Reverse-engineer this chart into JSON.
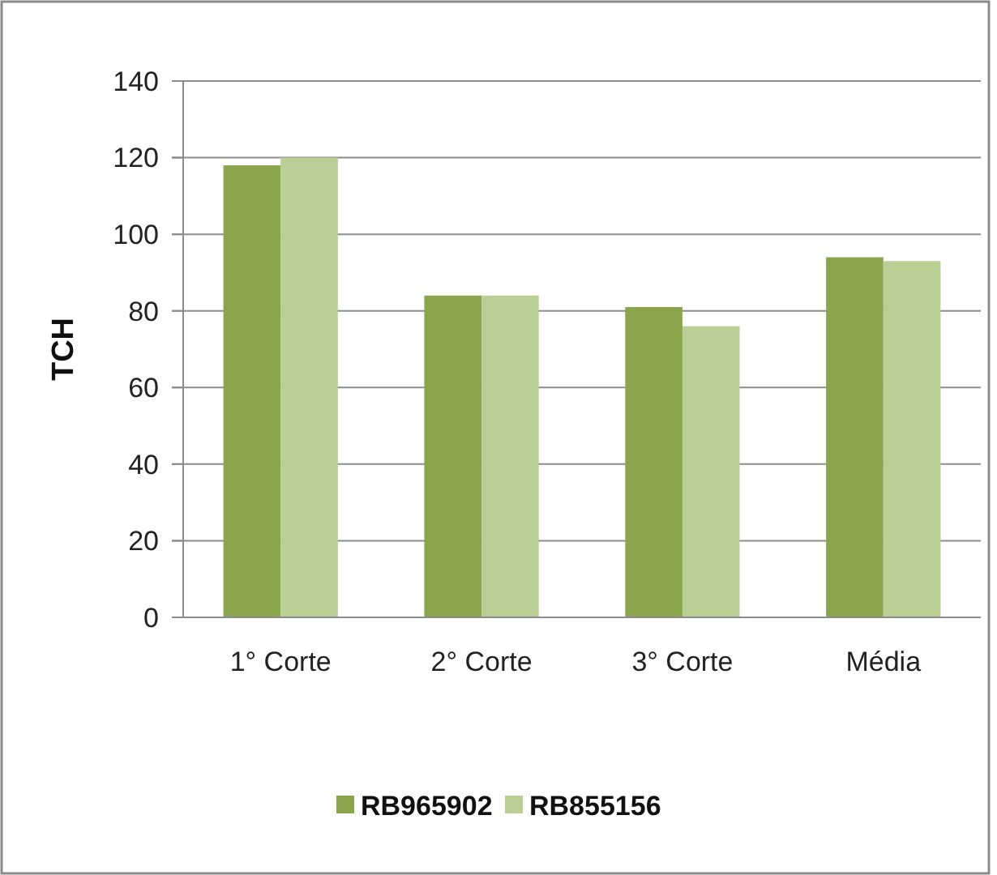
{
  "chart_data": {
    "type": "bar",
    "ylabel": "TCH",
    "categories": [
      "1° Corte",
      "2° Corte",
      "3° Corte",
      "Média"
    ],
    "series": [
      {
        "name": "RB965902",
        "color": "#8aa64c",
        "values": [
          118,
          84,
          81,
          94
        ]
      },
      {
        "name": "RB855156",
        "color": "#b9cf95",
        "values": [
          120,
          84,
          76,
          93
        ]
      }
    ],
    "ylim": [
      0,
      140
    ],
    "yticks": [
      0,
      20,
      40,
      60,
      80,
      100,
      120,
      140
    ],
    "grid": "y",
    "legend": "bottom"
  }
}
